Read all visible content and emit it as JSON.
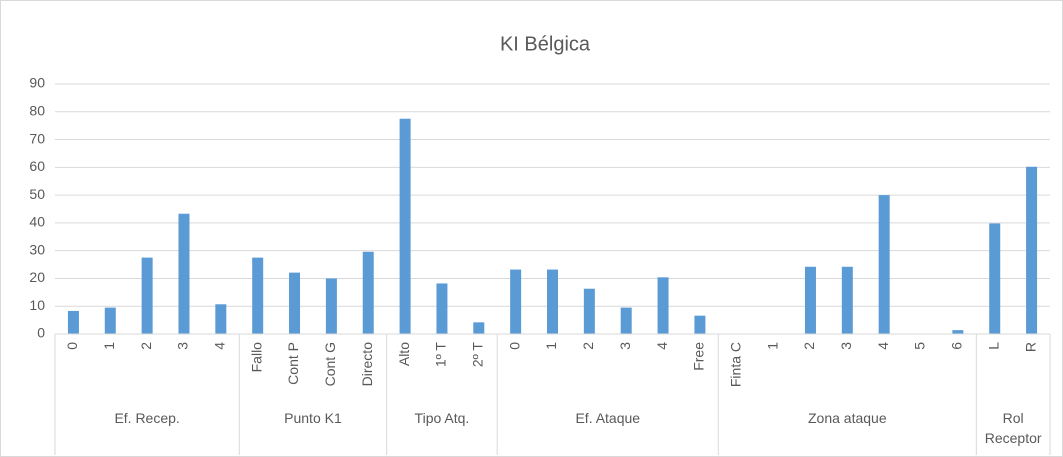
{
  "chart_data": {
    "type": "bar",
    "title": "KI Bélgica",
    "color": "#5b9bd5",
    "ylim": [
      0,
      90
    ],
    "yticks": [
      0,
      10,
      20,
      30,
      40,
      50,
      60,
      70,
      80,
      90
    ],
    "grid": true,
    "groups": [
      {
        "label": "Ef. Recep.",
        "categories": [
          "0",
          "1",
          "2",
          "3",
          "4"
        ],
        "values": [
          8.3,
          9.5,
          27.5,
          43.3,
          10.7
        ]
      },
      {
        "label": "Punto K1",
        "categories": [
          "Fallo",
          "Cont P",
          "Cont G",
          "Directo"
        ],
        "values": [
          27.5,
          22.1,
          20,
          29.6
        ]
      },
      {
        "label": "Tipo Atq.",
        "categories": [
          "Alto",
          "1º T",
          "2º T"
        ],
        "values": [
          77.5,
          18.2,
          4.2
        ]
      },
      {
        "label": "Ef. Ataque",
        "categories": [
          "0",
          "1",
          "2",
          "3",
          "4",
          "Free"
        ],
        "values": [
          23.2,
          23.2,
          16.3,
          9.5,
          20.4,
          6.6
        ]
      },
      {
        "label": "Zona ataque",
        "categories": [
          "Finta C",
          "1",
          "2",
          "3",
          "4",
          "5",
          "6"
        ],
        "values": [
          0,
          0,
          24.2,
          24.2,
          50,
          0,
          1.4
        ]
      },
      {
        "label": "Rol Receptor",
        "categories": [
          "L",
          "R"
        ],
        "values": [
          39.8,
          60.2
        ]
      }
    ]
  }
}
